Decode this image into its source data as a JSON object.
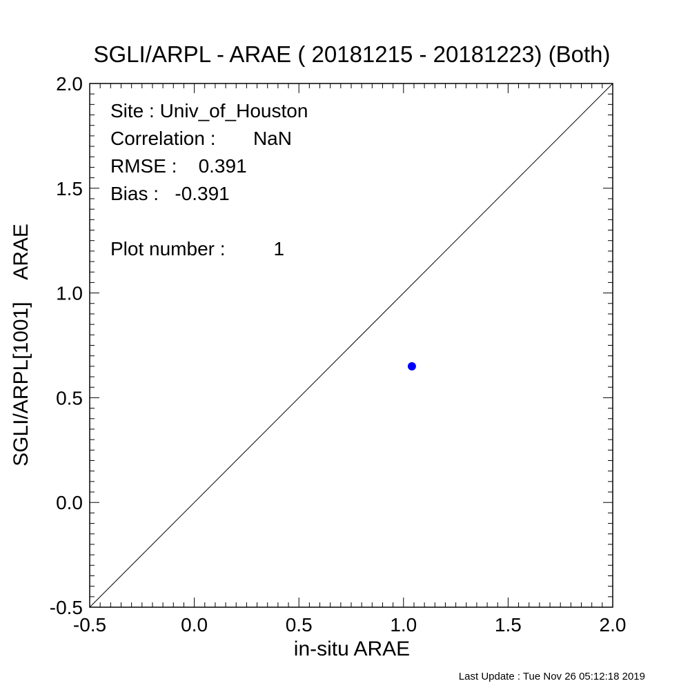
{
  "chart_data": {
    "type": "scatter",
    "title": "SGLI/ARPL - ARAE ( 20181215 - 20181223) (Both)",
    "xlabel": "in-situ ARAE",
    "ylabel": "SGLI/ARPL[1001]    ARAE",
    "xlim": [
      -0.5,
      2.0
    ],
    "ylim": [
      -0.5,
      2.0
    ],
    "xticks": [
      -0.5,
      0.0,
      0.5,
      1.0,
      1.5,
      2.0
    ],
    "yticks": [
      -0.5,
      0.0,
      0.5,
      1.0,
      1.5,
      2.0
    ],
    "xtick_labels": [
      "-0.5",
      "0.0",
      "0.5",
      "1.0",
      "1.5",
      "2.0"
    ],
    "ytick_labels": [
      "-0.5",
      "0.0",
      "0.5",
      "1.0",
      "1.5",
      "2.0"
    ],
    "grid": false,
    "reference_line": "1:1",
    "points": [
      {
        "x": 1.04,
        "y": 0.65,
        "color": "#0000ff"
      }
    ],
    "annotations": [
      "Site : Univ_of_Houston",
      "Correlation :       NaN",
      "RMSE :    0.391",
      "Bias :   -0.391",
      "Plot number :         1"
    ]
  },
  "footer": "Last Update : Tue Nov 26 05:12:18 2019"
}
